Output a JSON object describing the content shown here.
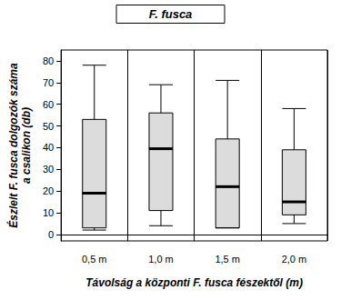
{
  "chart_data": {
    "type": "boxplot",
    "title": "F. fusca",
    "xlabel": "Távolság a központi F. fusca fészektől (m)",
    "ylabel": [
      "Észlelt F. fusca dolgozók száma",
      "a csalikon (db)"
    ],
    "categories": [
      "0,5 m",
      "1,0 m",
      "1,5 m",
      "2,0 m"
    ],
    "boxes": [
      {
        "min": 2,
        "q1": 3,
        "median": 19,
        "q3": 53,
        "max": 78
      },
      {
        "min": 4,
        "q1": 11,
        "median": 39.5,
        "q3": 56,
        "max": 69
      },
      {
        "min": 3,
        "q1": 3,
        "median": 22,
        "q3": 44,
        "max": 71
      },
      {
        "min": 5,
        "q1": 9,
        "median": 15,
        "q3": 39,
        "max": 58
      }
    ],
    "color": "#dcdcdc",
    "ylim": [
      -3,
      85
    ],
    "yticks": [
      0,
      10,
      20,
      30,
      40,
      50,
      60,
      70,
      80
    ],
    "grid": true
  }
}
